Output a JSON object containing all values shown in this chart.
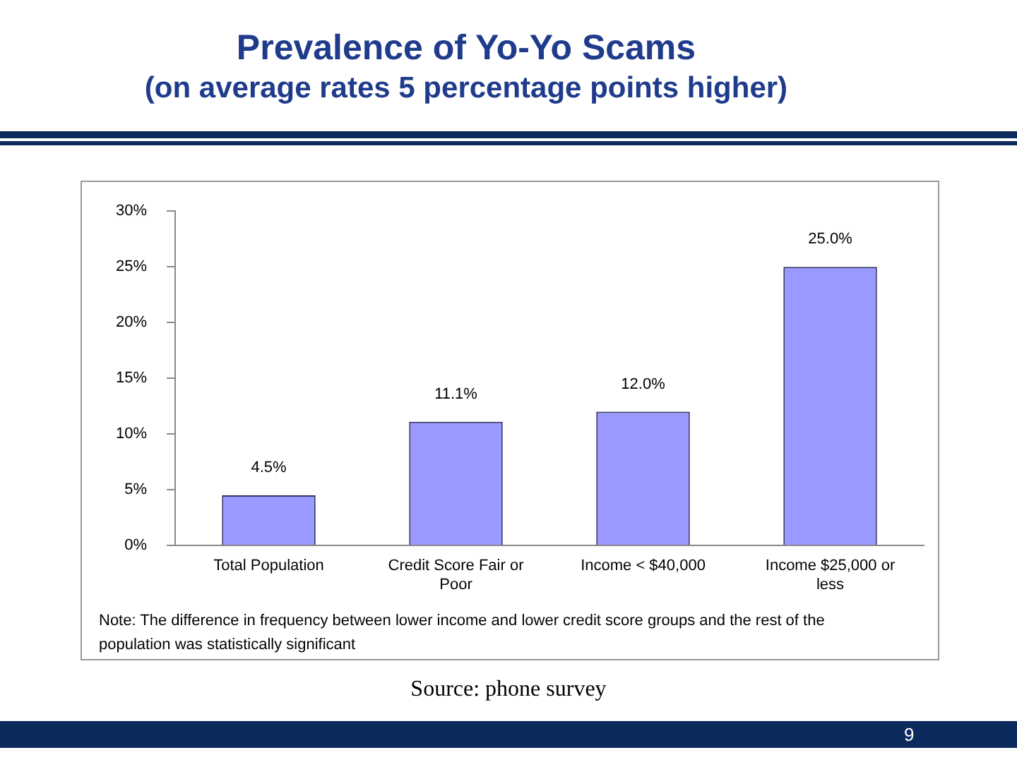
{
  "chart_data": {
    "type": "bar",
    "title": "Prevalence of Yo-Yo Scams",
    "subtitle": "(on average rates 5 percentage points higher)",
    "categories": [
      "Total Population",
      "Credit Score Fair or Poor",
      "Income < $40,000",
      "Income $25,000 or less"
    ],
    "values": [
      4.5,
      11.1,
      12.0,
      25.0
    ],
    "value_labels": [
      "4.5%",
      "11.1%",
      "12.0%",
      "25.0%"
    ],
    "color": "#9999ff",
    "ylim": [
      0,
      30
    ],
    "yticks": [
      {
        "value": 0,
        "label": "0%"
      },
      {
        "value": 5,
        "label": "5%"
      },
      {
        "value": 10,
        "label": "10%"
      },
      {
        "value": 15,
        "label": "15%"
      },
      {
        "value": 20,
        "label": "20%"
      },
      {
        "value": 25,
        "label": "25%"
      },
      {
        "value": 30,
        "label": "30%"
      }
    ],
    "grid": false,
    "legend": false,
    "annotations": [
      "Note: The difference in frequency between lower income and lower credit score groups and the rest of the population was statistically significant",
      "Source: phone survey",
      "9"
    ]
  }
}
